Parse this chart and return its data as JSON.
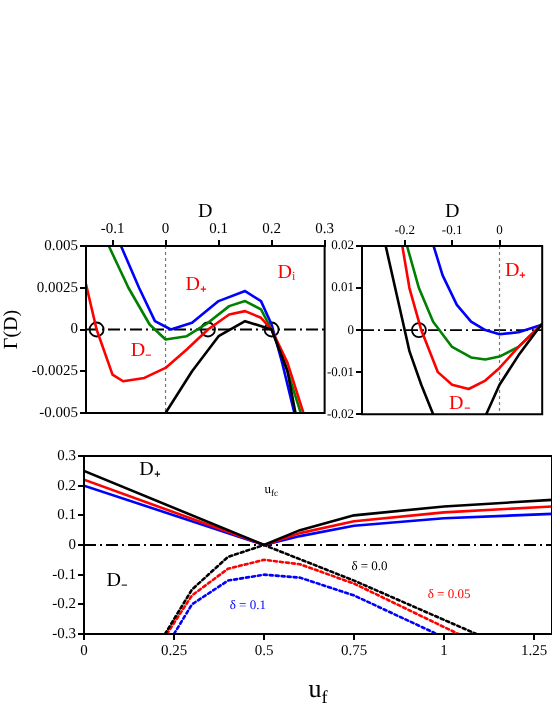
{
  "chart_data": [
    {
      "type": "line",
      "xlabel": "D",
      "ylabel": "Γ(D)",
      "xlim": [
        -0.15,
        0.3
      ],
      "xticks": [
        -0.1,
        0,
        0.1,
        0.2,
        0.3
      ],
      "ylim": [
        -0.005,
        0.005
      ],
      "yticks": [
        -0.005,
        -0.0025,
        0,
        0.0025,
        0.005
      ],
      "grid": false,
      "legend": false,
      "series": [
        {
          "color": "#000000",
          "line_style": "solid",
          "x": [
            0.0,
            0.05,
            0.1,
            0.15,
            0.2,
            0.23,
            0.245
          ],
          "values": [
            -0.005,
            -0.0025,
            -0.0004,
            0.0005,
            0,
            -0.0025,
            -0.005
          ]
        },
        {
          "color": "#ff0000",
          "line_style": "solid",
          "x": [
            -0.15,
            -0.13,
            -0.1,
            -0.08,
            -0.04,
            0,
            0.04,
            0.08,
            0.12,
            0.15,
            0.18,
            0.2,
            0.23,
            0.26
          ],
          "values": [
            0.0027,
            0,
            -0.0027,
            -0.0031,
            -0.0029,
            -0.0023,
            -0.0012,
            0,
            0.0009,
            0.0011,
            0.0007,
            0,
            -0.002,
            -0.005
          ]
        },
        {
          "color": "#008000",
          "line_style": "solid",
          "x": [
            -0.107,
            -0.07,
            -0.03,
            0,
            0.04,
            0.08,
            0.12,
            0.15,
            0.18,
            0.2,
            0.225,
            0.255
          ],
          "values": [
            0.005,
            0.0025,
            0.0003,
            -0.0006,
            -0.0004,
            0.0004,
            0.0014,
            0.0017,
            0.0012,
            0,
            -0.002,
            -0.005
          ]
        },
        {
          "color": "#0000ff",
          "line_style": "solid",
          "x": [
            -0.084,
            -0.05,
            -0.02,
            0.01,
            0.05,
            0.1,
            0.15,
            0.18,
            0.2,
            0.22,
            0.243
          ],
          "values": [
            0.005,
            0.0025,
            0.0005,
            0,
            0.0004,
            0.0017,
            0.0023,
            0.0017,
            0.0003,
            -0.002,
            -0.005
          ]
        },
        {
          "type": "scatter",
          "marker": "circle",
          "color": "#000000",
          "x": [
            -0.13,
            0.08,
            0.2
          ],
          "values": [
            0,
            0,
            0
          ]
        }
      ],
      "ref_lines": [
        {
          "axis": "y",
          "value": 0,
          "line_style": "dashed"
        },
        {
          "axis": "x",
          "value": 0,
          "line_style": "dotted"
        }
      ],
      "annotations": [
        "D₋",
        "D₊",
        "Dᵢ"
      ]
    },
    {
      "type": "line",
      "xlabel": "D",
      "xlim": [
        -0.29,
        0.09
      ],
      "xticks": [
        -0.2,
        -0.1,
        0
      ],
      "ylim": [
        -0.02,
        0.02
      ],
      "yticks": [
        -0.02,
        -0.01,
        0,
        0.01,
        0.02
      ],
      "grid": false,
      "legend": false,
      "series": [
        {
          "color": "#000000",
          "line_style": "solid",
          "x": [
            -0.24,
            -0.21,
            -0.19,
            -0.165,
            -0.14,
            null,
            -0.028,
            0,
            0.04,
            0.088
          ],
          "values": [
            0.02,
            0.005,
            -0.005,
            -0.013,
            -0.02,
            null,
            -0.02,
            -0.013,
            -0.006,
            0.0013
          ]
        },
        {
          "color": "#ff0000",
          "line_style": "solid",
          "x": [
            -0.205,
            -0.19,
            -0.165,
            -0.13,
            -0.1,
            -0.065,
            -0.03,
            0,
            0.04,
            0.088
          ],
          "values": [
            0.02,
            0.01,
            0,
            -0.01,
            -0.013,
            -0.014,
            -0.012,
            -0.009,
            -0.004,
            0.0012
          ]
        },
        {
          "color": "#008000",
          "line_style": "solid",
          "x": [
            -0.195,
            -0.17,
            -0.14,
            -0.1,
            -0.06,
            -0.03,
            0,
            0.04,
            0.088
          ],
          "values": [
            0.02,
            0.01,
            0.002,
            -0.004,
            -0.0065,
            -0.007,
            -0.0063,
            -0.004,
            0.0012
          ]
        },
        {
          "color": "#0000ff",
          "line_style": "solid",
          "x": [
            -0.139,
            -0.12,
            -0.09,
            -0.06,
            -0.03,
            0,
            0.04,
            0.088
          ],
          "values": [
            0.02,
            0.013,
            0.006,
            0.002,
            0,
            -0.001,
            -0.0005,
            0.0012
          ]
        },
        {
          "type": "scatter",
          "marker": "circle",
          "color": "#000000",
          "x": [
            -0.17
          ],
          "values": [
            0
          ]
        }
      ],
      "ref_lines": [
        {
          "axis": "y",
          "value": 0,
          "line_style": "dashed"
        },
        {
          "axis": "x",
          "value": 0,
          "line_style": "dotted"
        }
      ],
      "annotations": [
        "D₋",
        "D₊"
      ]
    },
    {
      "type": "line",
      "xlabel": "u$_{f}$",
      "xlim": [
        0,
        1.3
      ],
      "xticks": [
        0,
        0.25,
        0.5,
        0.75,
        1,
        1.25
      ],
      "ylim": [
        -0.3,
        0.3
      ],
      "yticks": [
        -0.3,
        -0.2,
        -0.1,
        0,
        0.1,
        0.2,
        0.3
      ],
      "grid": false,
      "legend": false,
      "series": [
        {
          "color": "#000000",
          "line_style": "solid",
          "x": [
            0,
            0.49,
            0.5,
            0.6,
            0.75,
            1,
            1.3
          ],
          "values": [
            0.25,
            0.005,
            0,
            0.05,
            0.1,
            0.13,
            0.152
          ]
        },
        {
          "color": "#ff0000",
          "line_style": "solid",
          "x": [
            0,
            0.49,
            0.5,
            0.6,
            0.75,
            1,
            1.3
          ],
          "values": [
            0.22,
            0.005,
            0,
            0.04,
            0.08,
            0.11,
            0.13
          ]
        },
        {
          "color": "#0000ff",
          "line_style": "solid",
          "x": [
            0,
            0.5,
            0.6,
            0.75,
            1,
            1.3
          ],
          "values": [
            0.2,
            0,
            0.03,
            0.065,
            0.09,
            0.105
          ]
        },
        {
          "color": "#000000",
          "line_style": "dotted",
          "x": [
            0.225,
            0.3,
            0.4,
            0.5,
            0.75,
            1.09
          ],
          "values": [
            -0.3,
            -0.15,
            -0.04,
            0,
            -0.12,
            -0.3
          ]
        },
        {
          "color": "#ff0000",
          "line_style": "dotted",
          "x": [
            0.23,
            0.3,
            0.4,
            0.5,
            0.6,
            0.75,
            1.04
          ],
          "values": [
            -0.3,
            -0.17,
            -0.08,
            -0.05,
            -0.065,
            -0.13,
            -0.3
          ]
        },
        {
          "color": "#0000ff",
          "line_style": "dotted",
          "x": [
            0.25,
            0.3,
            0.4,
            0.5,
            0.6,
            0.75,
            0.98
          ],
          "values": [
            -0.3,
            -0.2,
            -0.12,
            -0.1,
            -0.11,
            -0.17,
            -0.3
          ]
        }
      ],
      "ref_lines": [
        {
          "axis": "y",
          "value": 0,
          "line_style": "dashed"
        }
      ],
      "annotations": [
        "D₊",
        "u$_{fc}$",
        "D₋",
        "δ = 0.0",
        "δ = 0.05",
        "δ = 0.1"
      ]
    }
  ]
}
